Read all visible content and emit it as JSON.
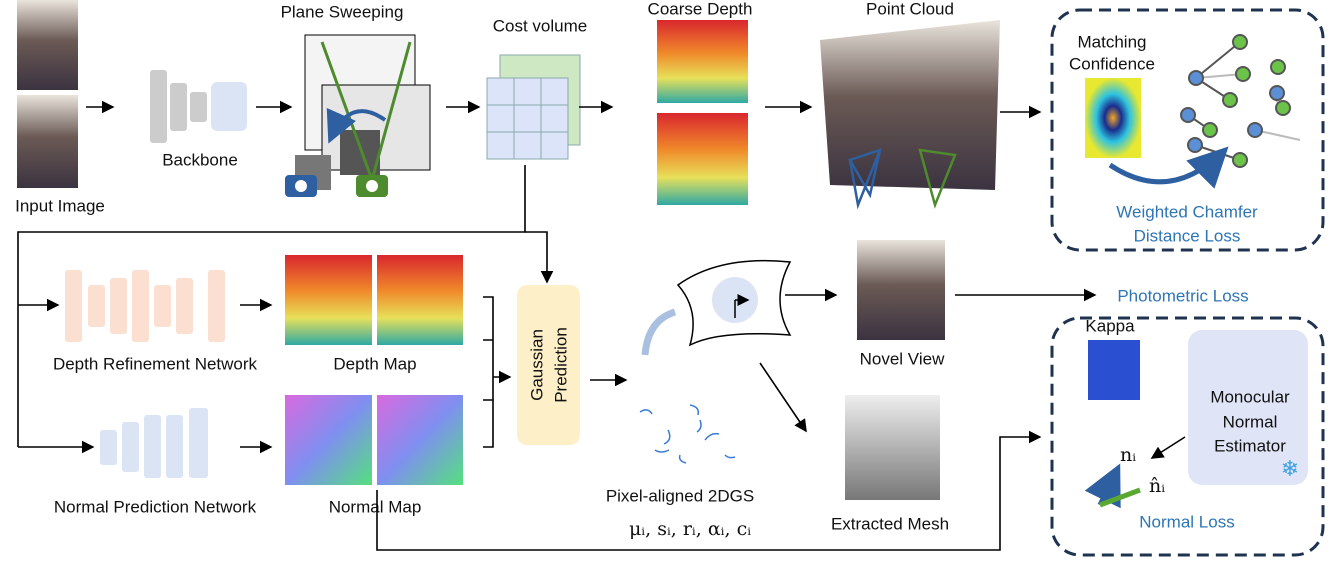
{
  "input_image": {
    "label": "Input Image"
  },
  "backbone": {
    "label": "Backbone"
  },
  "plane_sweeping": {
    "label": "Plane Sweeping"
  },
  "cost_volume": {
    "label": "Cost volume"
  },
  "coarse_depth": {
    "label": "Coarse Depth"
  },
  "point_cloud": {
    "label": "Point Cloud"
  },
  "chamfer_box": {
    "confidence_label": [
      "Matching",
      "Confidence"
    ],
    "loss_label": [
      "Weighted Chamfer",
      "Distance Loss"
    ]
  },
  "photometric_loss": {
    "label": "Photometric Loss"
  },
  "depth_refinement": {
    "label": "Depth Refinement Network"
  },
  "depth_map": {
    "label": "Depth Map"
  },
  "normal_prediction": {
    "label": "Normal Prediction Network"
  },
  "normal_map": {
    "label": "Normal Map"
  },
  "gaussian_prediction": {
    "label": [
      "Gaussian",
      "Prediction"
    ]
  },
  "gaussians": {
    "label": "Pixel-aligned 2DGS",
    "formula": "μᵢ, sᵢ, rᵢ, αᵢ, cᵢ"
  },
  "novel_view": {
    "label": "Novel View"
  },
  "extracted_mesh": {
    "label": "Extracted Mesh"
  },
  "normal_box": {
    "kappa_label": "Kappa",
    "estimator_label": [
      "Monocular",
      "Normal",
      "Estimator"
    ],
    "n_label": "nᵢ",
    "n_hat_label": "n̂ᵢ",
    "loss_label": "Normal Loss"
  }
}
